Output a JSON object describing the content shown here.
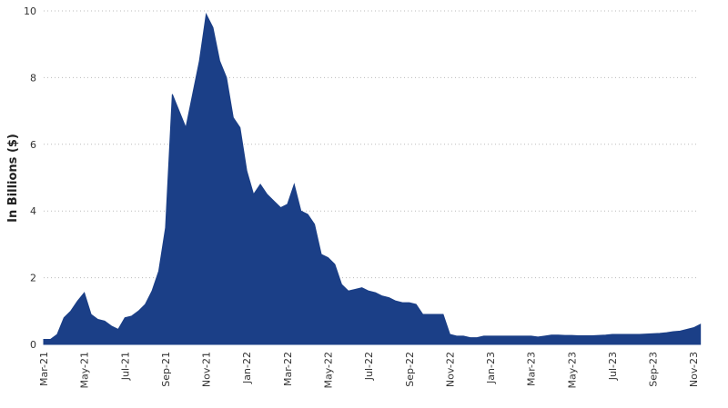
{
  "chart_data": {
    "type": "area",
    "y_label": "In Billions ($)",
    "color": "#1b3f87",
    "categories": [
      "Mar-21",
      null,
      null,
      null,
      null,
      null,
      "May-21",
      null,
      null,
      null,
      null,
      null,
      "Jul-21",
      null,
      null,
      null,
      null,
      null,
      "Sep-21",
      null,
      null,
      null,
      null,
      null,
      "Nov-21",
      null,
      null,
      null,
      null,
      null,
      "Jan-22",
      null,
      null,
      null,
      null,
      null,
      "Mar-22",
      null,
      null,
      null,
      null,
      null,
      "May-22",
      null,
      null,
      null,
      null,
      null,
      "Jul-22",
      null,
      null,
      null,
      null,
      null,
      "Sep-22",
      null,
      null,
      null,
      null,
      null,
      "Nov-22",
      null,
      null,
      null,
      null,
      null,
      "Jan-23",
      null,
      null,
      null,
      null,
      null,
      "Mar-23",
      null,
      null,
      null,
      null,
      null,
      "May-23",
      null,
      null,
      null,
      null,
      null,
      "Jul-23",
      null,
      null,
      null,
      null,
      null,
      "Sep-23",
      null,
      null,
      null,
      null,
      null,
      "Nov-23",
      null
    ],
    "values": [
      0.15,
      0.15,
      0.3,
      0.8,
      1.0,
      1.3,
      1.55,
      0.9,
      0.75,
      0.7,
      0.55,
      0.45,
      0.8,
      0.85,
      1.0,
      1.2,
      1.6,
      2.2,
      3.5,
      7.5,
      7.0,
      6.5,
      7.5,
      8.5,
      9.9,
      9.5,
      8.5,
      8.0,
      6.8,
      6.5,
      5.2,
      4.5,
      4.8,
      4.5,
      4.3,
      4.1,
      4.2,
      4.8,
      4.0,
      3.9,
      3.6,
      2.7,
      2.6,
      2.4,
      1.8,
      1.6,
      1.65,
      1.7,
      1.6,
      1.55,
      1.45,
      1.4,
      1.3,
      1.25,
      1.25,
      1.2,
      0.9,
      0.9,
      0.9,
      0.9,
      0.3,
      0.25,
      0.25,
      0.2,
      0.2,
      0.25,
      0.25,
      0.25,
      0.25,
      0.25,
      0.25,
      0.25,
      0.25,
      0.22,
      0.25,
      0.28,
      0.28,
      0.27,
      0.27,
      0.26,
      0.26,
      0.26,
      0.27,
      0.28,
      0.3,
      0.3,
      0.3,
      0.3,
      0.3,
      0.31,
      0.32,
      0.33,
      0.35,
      0.38,
      0.4,
      0.45,
      0.5,
      0.6
    ],
    "ylim": [
      0,
      10
    ],
    "yticks": [
      0,
      2,
      4,
      6,
      8,
      10
    ],
    "grid": true
  }
}
